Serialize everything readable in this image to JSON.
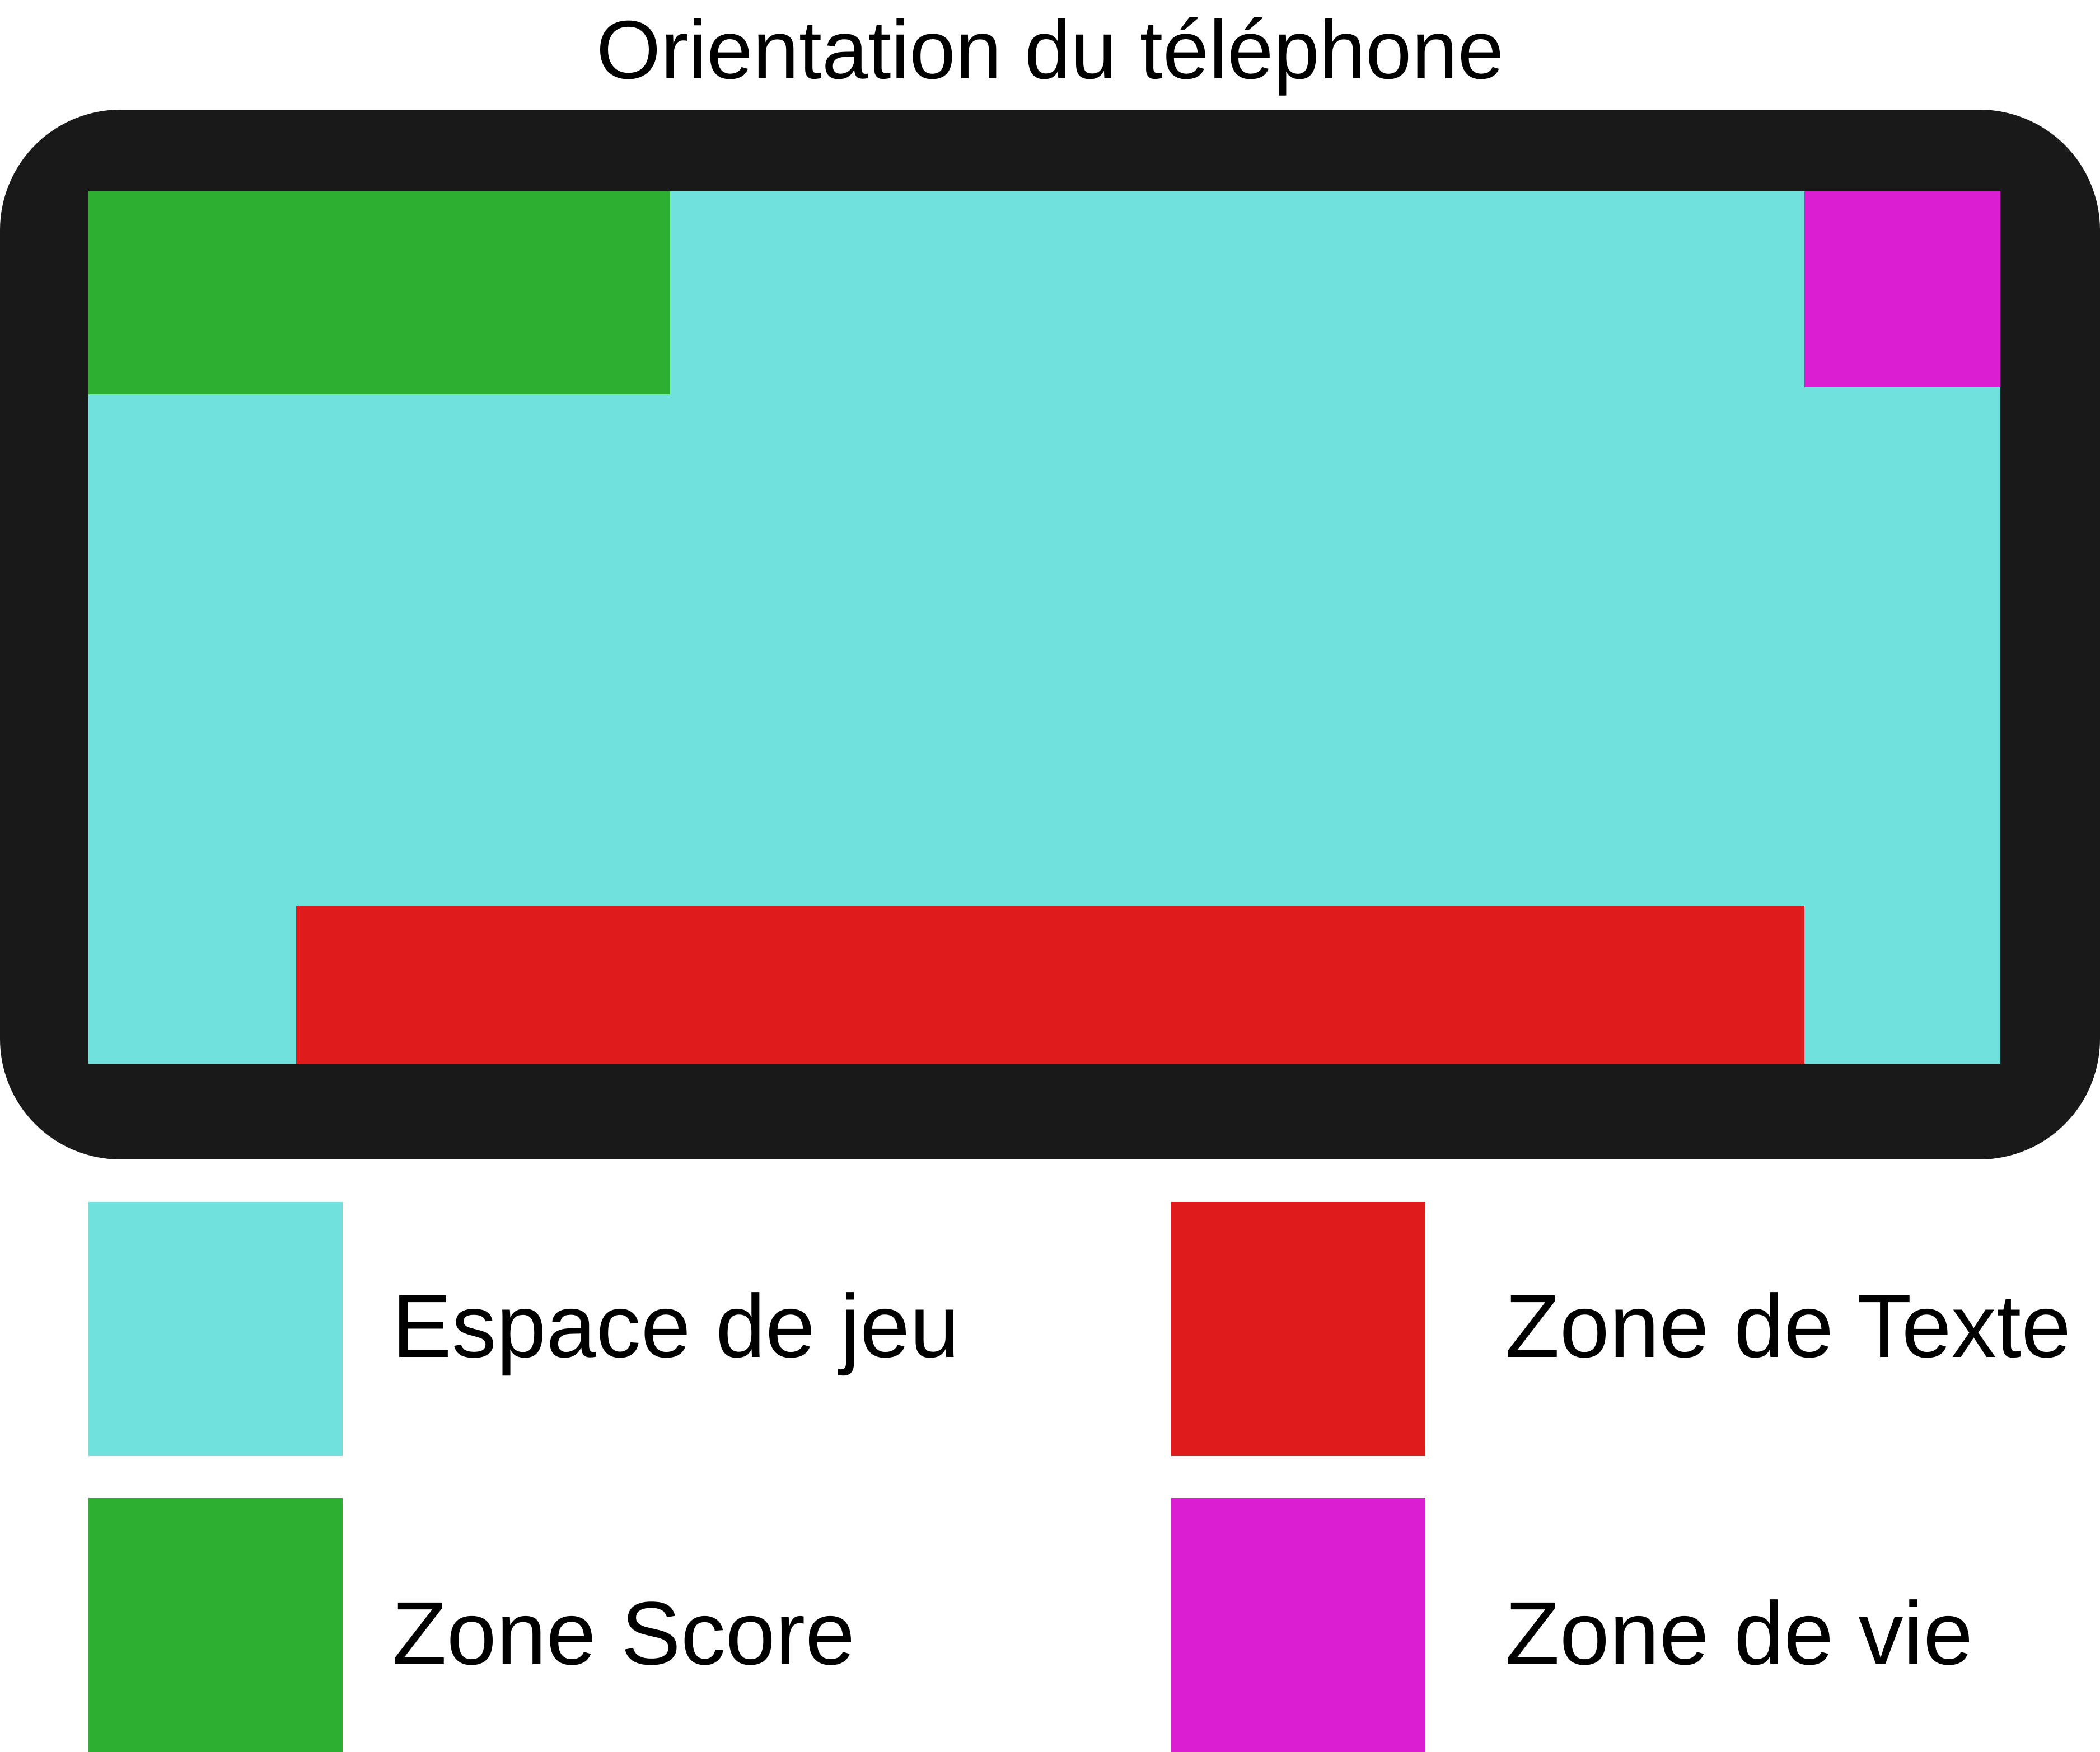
{
  "title": "Orientation du téléphone",
  "colors": {
    "frame": "#191919",
    "espace_de_jeu": "#70E1DC",
    "zone_score": "#2DAF31",
    "zone_texte": "#DF1B1B",
    "zone_vie": "#DC1ED2",
    "background": "#FFFFFF"
  },
  "legend": {
    "espace_de_jeu": "Espace de jeu",
    "zone_score": "Zone Score",
    "zone_texte": "Zone de Texte",
    "zone_vie": "Zone de vie"
  }
}
